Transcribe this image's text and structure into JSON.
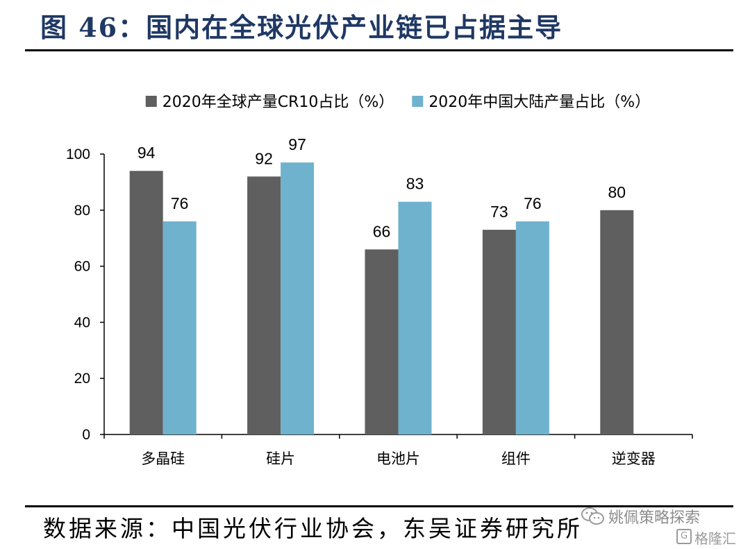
{
  "header": {
    "title": "图 46：国内在全球光伏产业链已占据主导"
  },
  "footer": {
    "source": "数据来源：中国光伏行业协会，东吴证券研究所"
  },
  "watermark": {
    "account": "姚佩策略探索",
    "logo_glyph": "G",
    "brand": "格隆汇"
  },
  "colors": {
    "series_global": "#5f5f5f",
    "series_china": "#6fb2cd",
    "title": "#1f3864"
  },
  "chart_data": {
    "type": "bar",
    "categories": [
      "多晶硅",
      "硅片",
      "电池片",
      "组件",
      "逆变器"
    ],
    "series": [
      {
        "name": "2020年全球产量CR10占比（%）",
        "values": [
          94,
          92,
          66,
          73,
          80
        ],
        "color": "#5f5f5f"
      },
      {
        "name": "2020年中国大陆产量占比（%）",
        "values": [
          76,
          97,
          83,
          76,
          null
        ],
        "color": "#6fb2cd"
      }
    ],
    "title": "",
    "xlabel": "",
    "ylabel": "",
    "ylim": [
      0,
      100
    ],
    "yticks": [
      0,
      20,
      40,
      60,
      80,
      100
    ],
    "grid": false,
    "legend": "top",
    "data_labels": true
  }
}
